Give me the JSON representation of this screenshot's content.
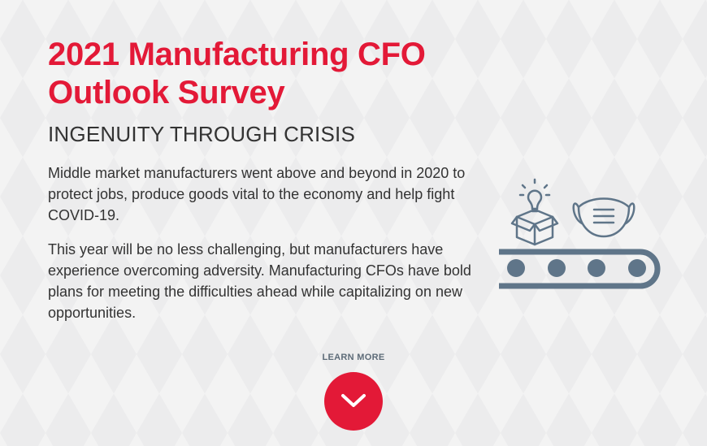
{
  "hero": {
    "title": "2021 Manufacturing CFO Outlook Survey",
    "subtitle": "INGENUITY THROUGH CRISIS",
    "paragraphs": [
      "Middle market manufacturers went above and beyond in 2020 to protect jobs, produce goods vital to the economy and help fight COVID-19.",
      "This year will be no less challenging, but manufacturers have experience overcoming adversity. Manufacturing CFOs have bold plans for meeting the difficulties ahead while capitalizing on new opportunities."
    ],
    "learn_more_label": "LEARN MORE",
    "button_icon": "chevron-down-icon",
    "illustration_icons": [
      "lightbulb-icon",
      "box-icon",
      "face-mask-icon",
      "conveyor-belt-icon"
    ]
  },
  "colors": {
    "accent": "#e31937",
    "icon": "#5f7589",
    "text": "#333333"
  }
}
